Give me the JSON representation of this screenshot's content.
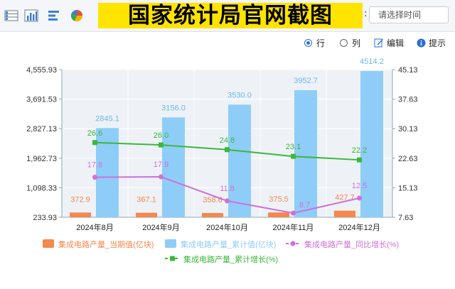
{
  "toolbar": {
    "icons": [
      "table-icon",
      "bar-chart-icon",
      "horizontal-bar-icon",
      "pie-chart-icon"
    ],
    "banner": "国家统计局官网截图",
    "time_select": {
      "placeholder": "请选择时间"
    }
  },
  "controls": {
    "row_label": "行",
    "col_label": "列",
    "edit_label": "编辑",
    "hint_label": "提示",
    "selected": "row"
  },
  "colors": {
    "current_bar": "#f4884d",
    "cumulative_bar": "#8ecdf7",
    "yoy_line": "#d070d9",
    "cum_growth_line": "#3ab83a",
    "value_text_blue": "#6ab8ec"
  },
  "chart_data": {
    "type": "bar",
    "categories": [
      "2024年8月",
      "2024年9月",
      "2024年10月",
      "2024年11月",
      "2024年12月"
    ],
    "y_left": {
      "ticks": [
        "233.93",
        "1,098.33",
        "1,962.73",
        "2,827.13",
        "3,691.53",
        "4,555.93"
      ],
      "ylim": [
        233.93,
        4555.93
      ]
    },
    "y_right": {
      "ticks": [
        "7.63",
        "15.13",
        "22.63",
        "30.13",
        "37.63",
        "45.13"
      ],
      "ylim": [
        7.63,
        45.13
      ]
    },
    "series": [
      {
        "name": "集成电路产量_当期值(亿块)",
        "type": "bar",
        "axis": "left",
        "values": [
          372.9,
          367.1,
          358.6,
          375.5,
          427.7
        ],
        "labels": [
          "372.9",
          "367.1",
          "358.6",
          "375.5",
          "427.7"
        ]
      },
      {
        "name": "集成电路产量_累计值(亿块)",
        "type": "bar",
        "axis": "left",
        "values": [
          2845.1,
          3156.0,
          3530.0,
          3952.7,
          4514.2
        ],
        "labels": [
          "2845.1",
          "3156.0",
          "3530.0",
          "3952.7",
          "4514.2"
        ]
      },
      {
        "name": "集成电路产量_同比增长(%)",
        "type": "line",
        "axis": "right",
        "values": [
          17.8,
          17.9,
          11.8,
          8.7,
          12.5
        ],
        "labels": [
          "17.8",
          "17.9",
          "11.8",
          "8.7",
          "12.5"
        ]
      },
      {
        "name": "集成电路产量_累计增长(%)",
        "type": "line",
        "axis": "right",
        "values": [
          26.6,
          26.0,
          24.8,
          23.1,
          22.2
        ],
        "labels": [
          "26.6",
          "26.0",
          "24.8",
          "23.1",
          "22.2"
        ]
      }
    ],
    "grid": true,
    "legend_position": "bottom"
  }
}
